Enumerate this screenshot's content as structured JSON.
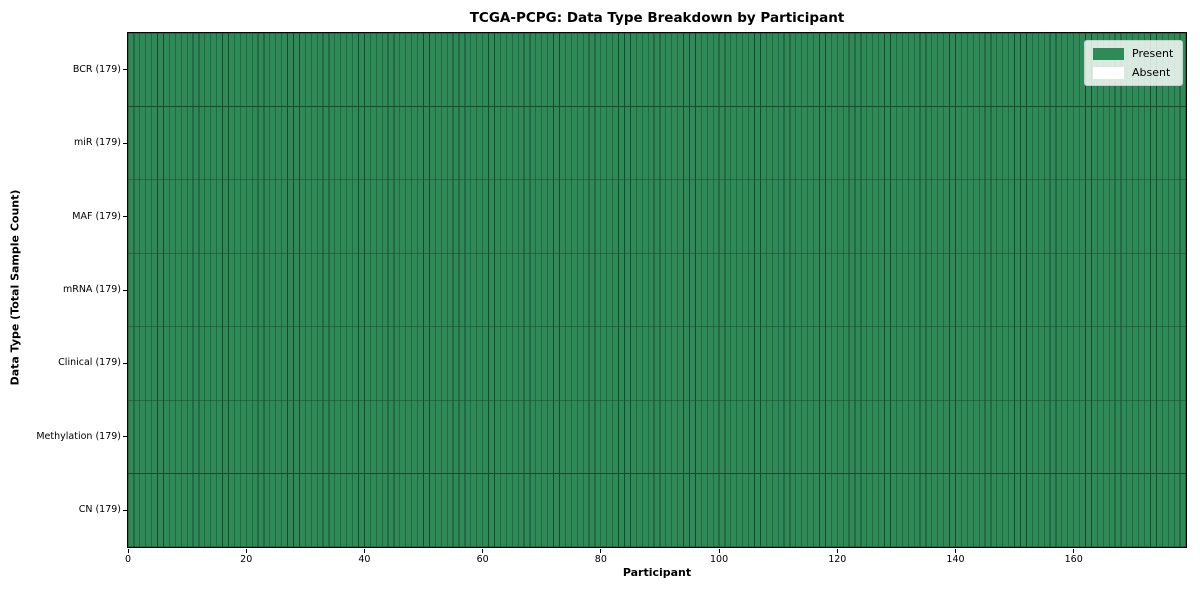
{
  "figure": {
    "title": "TCGA-PCPG: Data Type Breakdown by Participant",
    "xlabel": "Participant",
    "ylabel": "Data Type (Total Sample Count)"
  },
  "legend": {
    "entries": [
      {
        "label": "Present",
        "color": "#2e8b57"
      },
      {
        "label": "Absent",
        "color": "#ffffff"
      }
    ]
  },
  "chart_data": {
    "type": "heatmap",
    "title": "TCGA-PCPG: Data Type Breakdown by Participant",
    "xlabel": "Participant",
    "ylabel": "Data Type (Total Sample Count)",
    "n_participants": 179,
    "xlim": [
      0,
      179
    ],
    "x_ticks": [
      0,
      20,
      40,
      60,
      80,
      100,
      120,
      140,
      160
    ],
    "rows": [
      {
        "label": "BCR (179)",
        "data_type": "BCR",
        "total_samples": 179,
        "present_participants": 179,
        "absent_participants": 0
      },
      {
        "label": "miR (179)",
        "data_type": "miR",
        "total_samples": 179,
        "present_participants": 179,
        "absent_participants": 0
      },
      {
        "label": "MAF (179)",
        "data_type": "MAF",
        "total_samples": 179,
        "present_participants": 179,
        "absent_participants": 0
      },
      {
        "label": "mRNA (179)",
        "data_type": "mRNA",
        "total_samples": 179,
        "present_participants": 179,
        "absent_participants": 0
      },
      {
        "label": "Clinical (179)",
        "data_type": "Clinical",
        "total_samples": 179,
        "present_participants": 179,
        "absent_participants": 0
      },
      {
        "label": "Methylation (179)",
        "data_type": "Methylation",
        "total_samples": 179,
        "present_participants": 179,
        "absent_participants": 0
      },
      {
        "label": "CN (179)",
        "data_type": "CN",
        "total_samples": 179,
        "present_participants": 179,
        "absent_participants": 0
      }
    ],
    "cell_values_note": "Every cell for all 179 participants across all 7 data types is Present (value 1); no Absent cells are visible.",
    "colors": {
      "present": "#2e8b57",
      "absent": "#ffffff",
      "cell_edge": "#1d4630",
      "spine": "#000000"
    },
    "legend_entries": [
      "Present",
      "Absent"
    ],
    "legend_position": "upper right",
    "grid": "cell borders visible"
  }
}
